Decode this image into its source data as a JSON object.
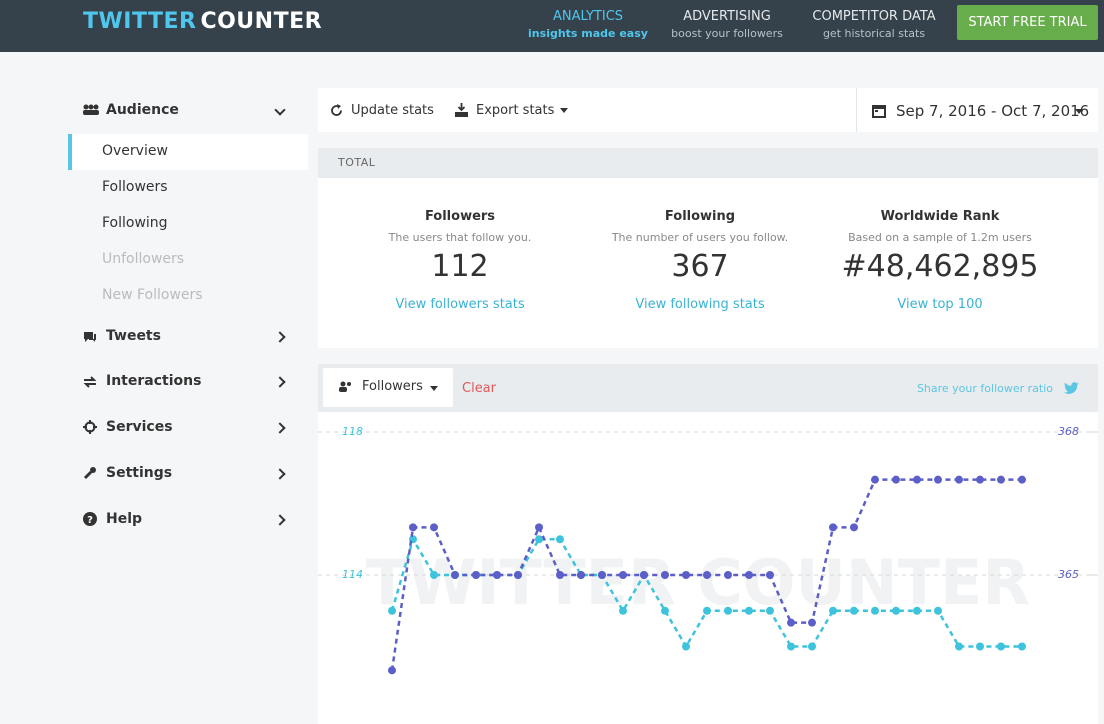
{
  "header": {
    "brand": {
      "first": "TWITTER",
      "second": "COUNTER"
    },
    "nav": [
      {
        "title": "ANALYTICS",
        "subtitle": "insights made easy"
      },
      {
        "title": "ADVERTISING",
        "subtitle": "boost your followers"
      },
      {
        "title": "COMPETITOR DATA",
        "subtitle": "get historical stats"
      }
    ],
    "cta": "START FREE TRIAL"
  },
  "sidebar": {
    "sections": [
      {
        "label": "Audience",
        "items": [
          "Overview",
          "Followers",
          "Following",
          "Unfollowers",
          "New Followers"
        ]
      },
      {
        "label": "Tweets"
      },
      {
        "label": "Interactions"
      },
      {
        "label": "Services"
      },
      {
        "label": "Settings"
      },
      {
        "label": "Help"
      }
    ]
  },
  "toolbar": {
    "update": "Update stats",
    "export": "Export stats",
    "date_range": "Sep 7, 2016 - Oct 7, 2016"
  },
  "total": {
    "heading": "TOTAL",
    "stats": [
      {
        "title": "Followers",
        "description": "The users that follow you.",
        "value": 112,
        "link": "View followers stats"
      },
      {
        "title": "Following",
        "description": "The number of users you follow.",
        "value": 367,
        "link": "View following stats"
      },
      {
        "title": "Worldwide Rank",
        "description": "Based on a sample of 1.2m users",
        "value": "#48,462,895",
        "link": "View top 100"
      }
    ]
  },
  "chart_panel": {
    "selector": "Followers",
    "clear": "Clear",
    "share": "Share your follower ratio",
    "watermark": "TWITTER COUNTER"
  },
  "chart_data": {
    "type": "line",
    "categories": [
      null,
      null,
      null,
      null,
      null,
      null,
      null,
      null,
      null,
      null,
      null,
      null,
      null,
      null,
      null,
      null,
      null,
      null,
      null,
      null,
      null,
      null,
      null,
      null,
      null,
      null,
      null,
      null,
      null,
      null,
      null
    ],
    "series": [
      {
        "color": "#3ec3dd",
        "values": [
          113,
          115,
          114,
          114,
          114,
          114,
          114,
          115,
          115,
          114,
          114,
          113,
          114,
          113,
          112,
          113,
          113,
          113,
          113,
          112,
          112,
          113,
          113,
          113,
          113,
          113,
          113,
          112,
          112,
          112,
          112
        ]
      },
      {
        "color": "#5b5fc7",
        "axis": "y2",
        "values": [
          363,
          366,
          366,
          365,
          365,
          365,
          365,
          366,
          365,
          365,
          365,
          365,
          365,
          365,
          365,
          365,
          365,
          365,
          365,
          364,
          364,
          366,
          366,
          367,
          367,
          367,
          367,
          367,
          367,
          367,
          367
        ]
      }
    ],
    "ylim": [
      110,
      118
    ],
    "yticks": [
      114,
      118
    ],
    "y2lim": [
      362,
      368
    ],
    "y2ticks": [
      365,
      368
    ],
    "grid": true,
    "line_style": "dashed"
  }
}
